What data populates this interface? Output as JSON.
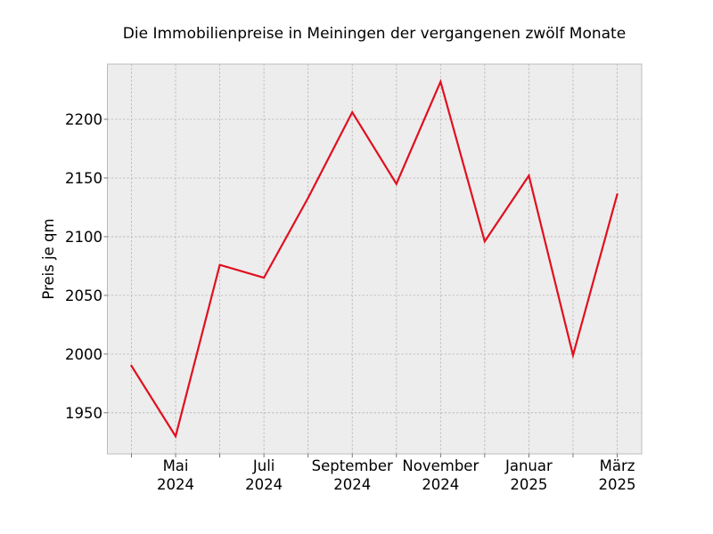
{
  "chart_data": {
    "type": "line",
    "title": "Die Immobilienpreise in Meiningen der vergangenen zwölf Monate",
    "xlabel": "",
    "ylabel": "Preis je qm",
    "x": [
      "2024-04",
      "2024-05",
      "2024-06",
      "2024-07",
      "2024-08",
      "2024-09",
      "2024-10",
      "2024-11",
      "2024-12",
      "2025-01",
      "2025-02",
      "2025-03"
    ],
    "series": [
      {
        "values": [
          1990,
          1930,
          2076,
          2065,
          2133,
          2206,
          2145,
          2232,
          2096,
          2152,
          1999,
          2136
        ],
        "color": "#e0101f"
      }
    ],
    "ylim": [
      1915,
      2247
    ],
    "yticks": [
      1950,
      2000,
      2050,
      2100,
      2150,
      2200
    ],
    "xtick_labels": [
      {
        "month": "Mai",
        "year": "2024",
        "at": "2024-05"
      },
      {
        "month": "Juli",
        "year": "2024",
        "at": "2024-07"
      },
      {
        "month": "September",
        "year": "2024",
        "at": "2024-09"
      },
      {
        "month": "November",
        "year": "2024",
        "at": "2024-11"
      },
      {
        "month": "Januar",
        "year": "2025",
        "at": "2025-01"
      },
      {
        "month": "März",
        "year": "2025",
        "at": "2025-03"
      }
    ],
    "grid": true,
    "legend": "none",
    "colors": {
      "plot_background": "#ededed",
      "grid": "#b0b0b0",
      "frame": "#bcbcbc"
    }
  }
}
